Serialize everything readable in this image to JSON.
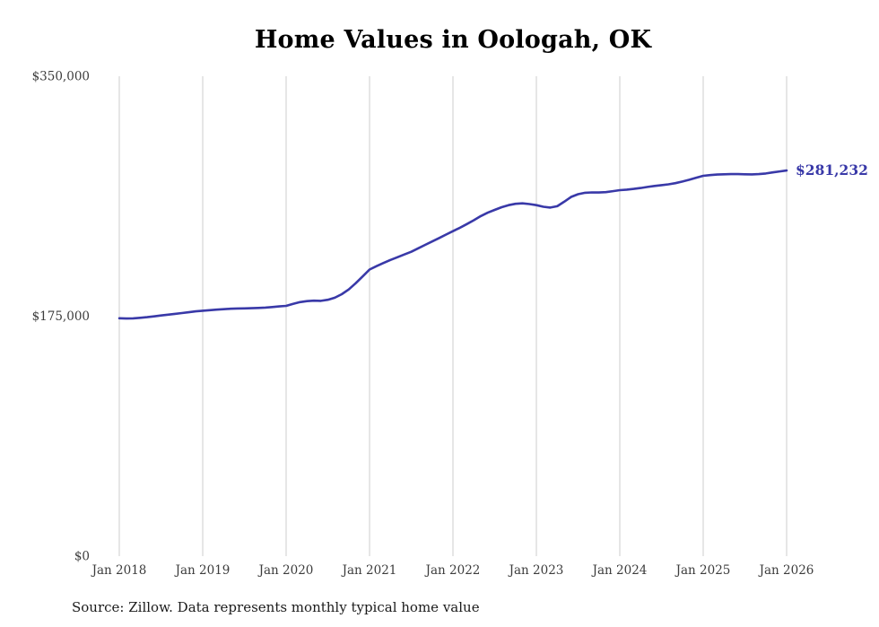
{
  "source": "Source: Zillow. Data represents monthly typical home value",
  "colors": {
    "line": "#3939a8",
    "end_label": "#3939a8",
    "grid": "#cdcdcd",
    "tick_text": "#3c3c3c",
    "title_text": "#000000",
    "source_text": "#1b1b1b",
    "background": "#ffffff"
  },
  "chart_data": {
    "type": "line",
    "title": "Home Values in Oologah, OK",
    "xlabel": "",
    "ylabel": "",
    "ylim": [
      0,
      350000
    ],
    "grid": "vertical-only",
    "legend": "none",
    "frequency": "monthly",
    "start_month": "2018-01",
    "end_month": "2026-01",
    "y_ticks": [
      {
        "label": "$0",
        "value": 0
      },
      {
        "label": "$175,000",
        "value": 175000
      },
      {
        "label": "$350,000",
        "value": 350000
      }
    ],
    "x_tick_labels": [
      "Jan 2018",
      "Jan 2019",
      "Jan 2020",
      "Jan 2021",
      "Jan 2022",
      "Jan 2023",
      "Jan 2024",
      "Jan 2025",
      "Jan 2026"
    ],
    "x_tick_indices": [
      0,
      12,
      24,
      36,
      48,
      60,
      72,
      84,
      96
    ],
    "latest_value": 281232,
    "end_label": "$281,232",
    "values": [
      173500,
      173300,
      173400,
      173800,
      174300,
      174900,
      175500,
      176100,
      176700,
      177300,
      177900,
      178500,
      179000,
      179400,
      179800,
      180100,
      180400,
      180600,
      180700,
      180800,
      181000,
      181300,
      181700,
      182100,
      182500,
      184000,
      185300,
      186000,
      186300,
      186200,
      187000,
      188500,
      191000,
      194500,
      199000,
      204000,
      209000,
      211500,
      213800,
      216000,
      218000,
      220000,
      222000,
      224500,
      227000,
      229500,
      232000,
      234500,
      237000,
      239500,
      242200,
      245000,
      248000,
      250500,
      252500,
      254500,
      256000,
      257000,
      257300,
      256800,
      256000,
      254800,
      254200,
      255200,
      258500,
      262000,
      264000,
      265000,
      265300,
      265200,
      265500,
      266200,
      266900,
      267300,
      267800,
      268500,
      269300,
      270000,
      270600,
      271200,
      272000,
      273200,
      274500,
      276000,
      277400,
      277900,
      278300,
      278500,
      278600,
      278600,
      278500,
      278400,
      278600,
      279100,
      279900,
      280600,
      281232
    ]
  }
}
